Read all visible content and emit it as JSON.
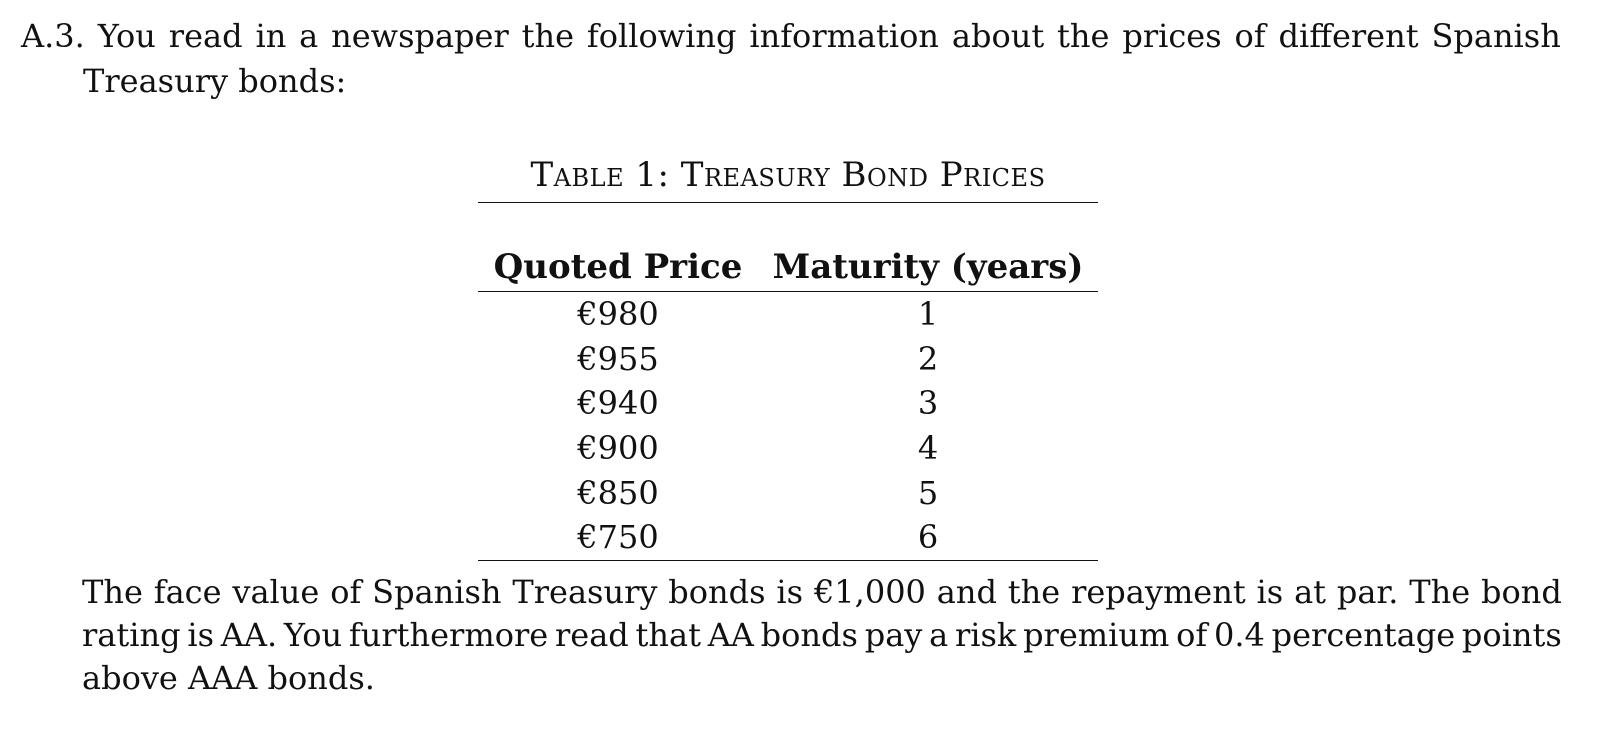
{
  "problem": {
    "number": "A.3.",
    "intro_line1_words": [
      "You",
      "read",
      "in",
      "a",
      "newspaper",
      "the",
      "following",
      "information",
      "about",
      "the",
      "prices",
      "of",
      "different",
      "Spanish"
    ],
    "intro_line2": "Treasury bonds:"
  },
  "table": {
    "caption": "Table 1: Treasury Bond Prices",
    "headers": [
      "Quoted Price",
      "Maturity (years)"
    ],
    "rows": [
      {
        "price": "€980",
        "maturity": "1"
      },
      {
        "price": "€955",
        "maturity": "2"
      },
      {
        "price": "€940",
        "maturity": "3"
      },
      {
        "price": "€900",
        "maturity": "4"
      },
      {
        "price": "€850",
        "maturity": "5"
      },
      {
        "price": "€750",
        "maturity": "6"
      }
    ]
  },
  "closing": {
    "line1_words": [
      "The",
      "face",
      "value",
      "of",
      "Spanish",
      "Treasury",
      "bonds",
      "is",
      "€1,000",
      "and",
      "the",
      "repayment",
      "is",
      "at",
      "par.",
      "The",
      "bond"
    ],
    "line2_words": [
      "rating",
      "is",
      "AA.",
      "You",
      "furthermore",
      "read",
      "that",
      "AA",
      "bonds",
      "pay",
      "a",
      "risk",
      "premium",
      "of",
      "0.4",
      "percentage",
      "points"
    ],
    "line3": "above AAA bonds."
  }
}
